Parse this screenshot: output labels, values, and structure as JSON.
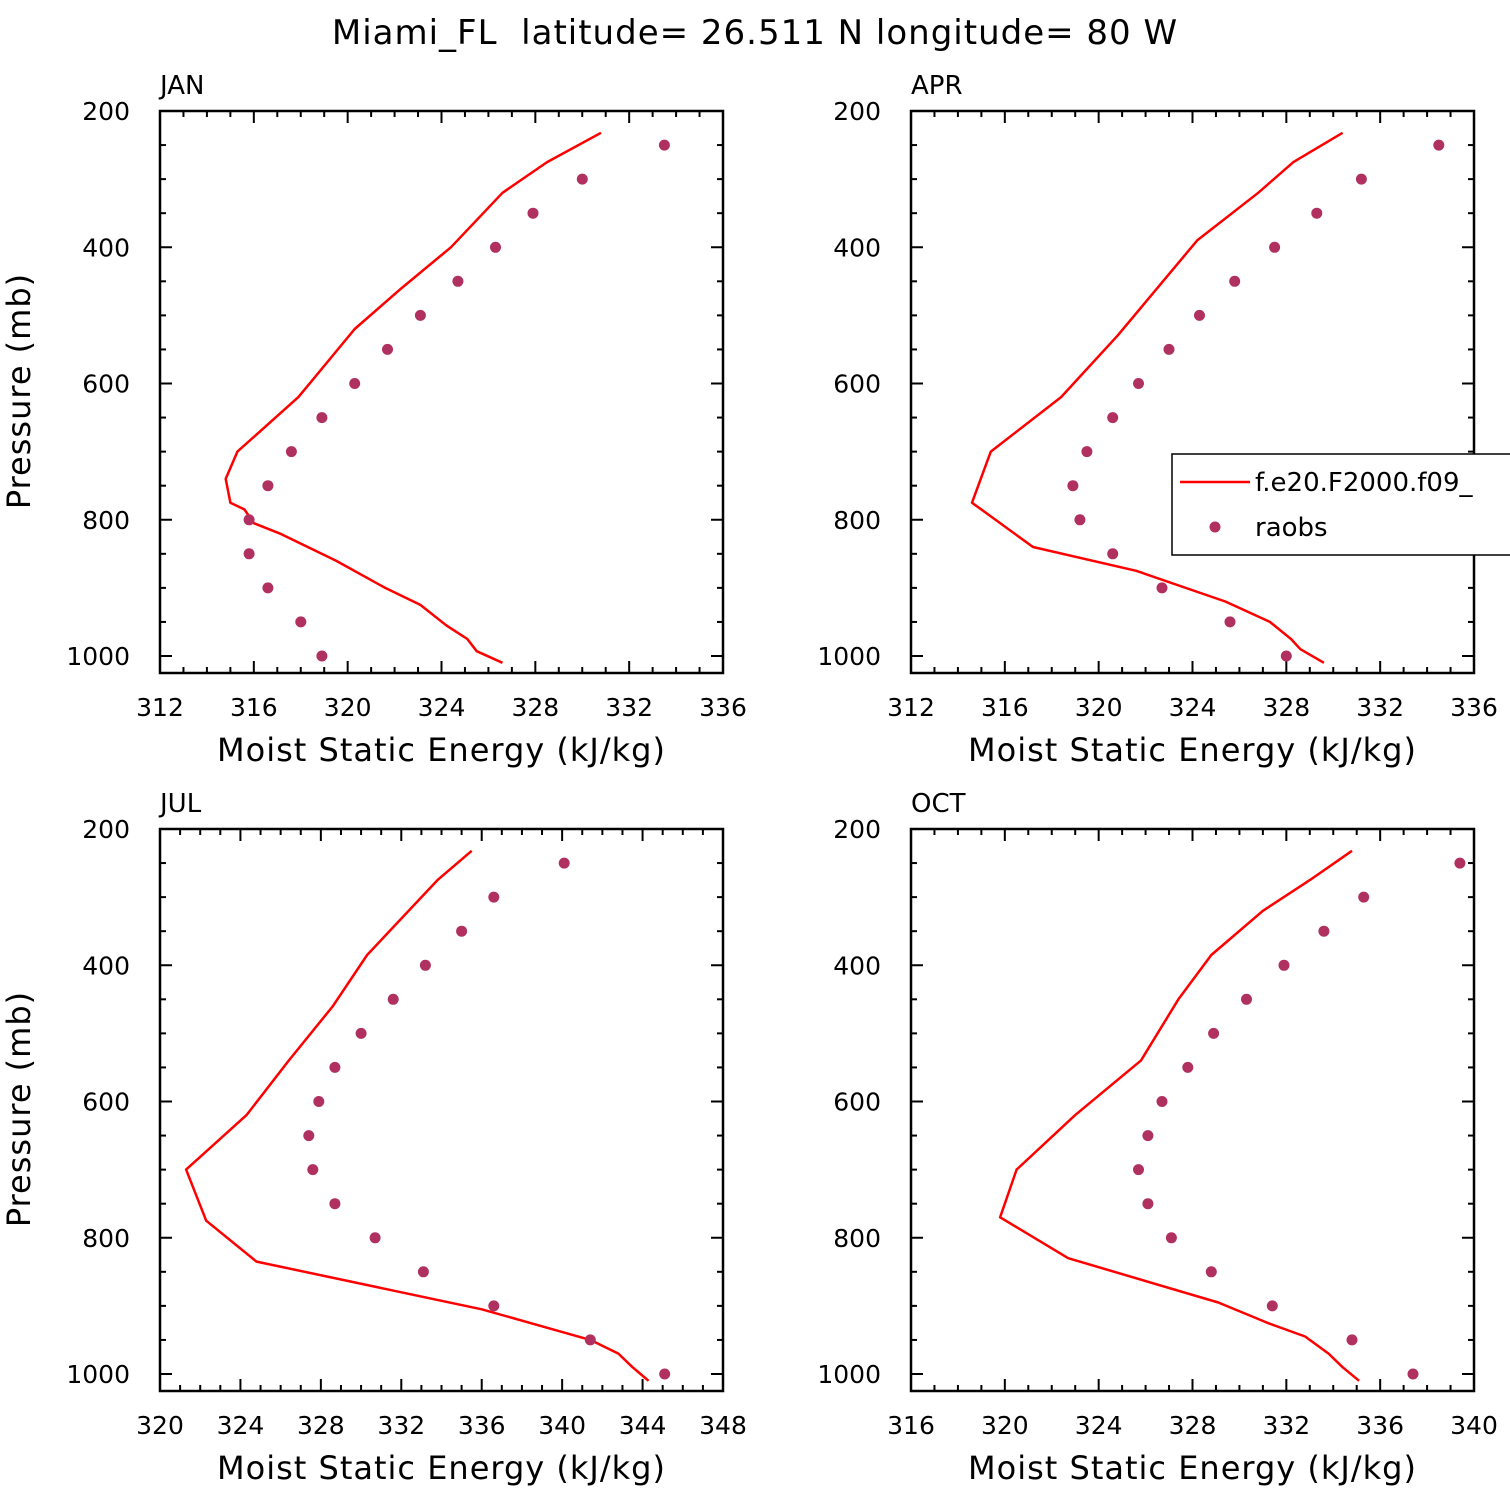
{
  "figure_title": "Miami_FL  latitude= 26.511 N longitude= 80 W",
  "colors": {
    "model": "#ff0000",
    "obs": "#b03060",
    "axis": "#000000"
  },
  "legend": {
    "model_label": "f.e20.F2000.f09_",
    "obs_label": "raobs",
    "panel_index": 1,
    "placement": "right"
  },
  "chart_data": [
    {
      "type": "line",
      "title": "JAN",
      "xlabel": "Moist Static Energy (kJ/kg)",
      "ylabel": "Pressure (mb)",
      "xlim": [
        312,
        336
      ],
      "ylim": [
        1000,
        200
      ],
      "xticks": [
        312,
        316,
        320,
        324,
        328,
        332,
        336
      ],
      "yticks": [
        200,
        400,
        600,
        800,
        1000
      ],
      "series": [
        {
          "name": "f.e20.F2000.f09_",
          "kind": "line",
          "x": [
            326.6,
            325.5,
            325.1,
            324.2,
            323.1,
            321.6,
            319.5,
            317.1,
            316.0,
            315.6,
            315.0,
            314.8,
            315.3,
            317.9,
            320.3,
            322.3,
            324.4,
            326.6,
            328.5,
            330.8
          ],
          "y": [
            1010,
            993,
            975,
            955,
            925,
            900,
            860,
            820,
            805,
            785,
            775,
            740,
            700,
            620,
            520,
            460,
            400,
            320,
            275,
            232
          ]
        },
        {
          "name": "raobs",
          "kind": "points",
          "x": [
            318.9,
            318.0,
            316.6,
            315.8,
            315.8,
            316.6,
            317.6,
            318.9,
            320.3,
            321.7,
            323.1,
            324.7,
            326.3,
            327.9,
            330.0,
            333.5
          ],
          "y": [
            1000,
            950,
            900,
            850,
            800,
            750,
            700,
            650,
            600,
            550,
            500,
            450,
            400,
            350,
            300,
            250
          ]
        }
      ]
    },
    {
      "type": "line",
      "title": "APR",
      "xlabel": "Moist Static Energy (kJ/kg)",
      "ylabel": "",
      "xlim": [
        312,
        336
      ],
      "ylim": [
        1000,
        200
      ],
      "xticks": [
        312,
        316,
        320,
        324,
        328,
        332,
        336
      ],
      "yticks": [
        200,
        400,
        600,
        800,
        1000
      ],
      "series": [
        {
          "name": "f.e20.F2000.f09_",
          "kind": "line",
          "x": [
            329.6,
            328.6,
            328.2,
            327.3,
            325.4,
            321.6,
            317.2,
            314.6,
            315.4,
            318.4,
            320.8,
            324.2,
            326.8,
            328.3,
            330.4
          ],
          "y": [
            1010,
            990,
            975,
            950,
            920,
            875,
            840,
            775,
            700,
            620,
            530,
            390,
            320,
            275,
            232
          ]
        },
        {
          "name": "raobs",
          "kind": "points",
          "x": [
            328.0,
            325.6,
            322.7,
            320.6,
            319.2,
            318.9,
            319.5,
            320.6,
            321.7,
            323.0,
            324.3,
            325.8,
            327.5,
            329.3,
            331.2,
            334.5
          ],
          "y": [
            1000,
            950,
            900,
            850,
            800,
            750,
            700,
            650,
            600,
            550,
            500,
            450,
            400,
            350,
            300,
            250
          ]
        }
      ]
    },
    {
      "type": "line",
      "title": "JUL",
      "xlabel": "Moist Static Energy (kJ/kg)",
      "ylabel": "Pressure (mb)",
      "xlim": [
        320,
        348
      ],
      "ylim": [
        1000,
        200
      ],
      "xticks": [
        320,
        324,
        328,
        332,
        336,
        340,
        344,
        348
      ],
      "yticks": [
        200,
        400,
        600,
        800,
        1000
      ],
      "series": [
        {
          "name": "f.e20.F2000.f09_",
          "kind": "line",
          "x": [
            344.3,
            343.5,
            342.8,
            341.4,
            339.0,
            336.0,
            324.8,
            322.3,
            321.3,
            324.3,
            326.4,
            328.6,
            330.3,
            333.8,
            335.5
          ],
          "y": [
            1010,
            990,
            970,
            950,
            930,
            905,
            835,
            775,
            700,
            620,
            540,
            460,
            385,
            275,
            232
          ]
        },
        {
          "name": "raobs",
          "kind": "points",
          "x": [
            345.1,
            341.4,
            336.6,
            333.1,
            330.7,
            328.7,
            327.6,
            327.4,
            327.9,
            328.7,
            330.0,
            331.6,
            333.2,
            335.0,
            336.6,
            340.1
          ],
          "y": [
            1000,
            950,
            900,
            850,
            800,
            750,
            700,
            650,
            600,
            550,
            500,
            450,
            400,
            350,
            300,
            250
          ]
        }
      ]
    },
    {
      "type": "line",
      "title": "OCT",
      "xlabel": "Moist Static Energy (kJ/kg)",
      "ylabel": "",
      "xlim": [
        316,
        340
      ],
      "ylim": [
        1000,
        200
      ],
      "xticks": [
        316,
        320,
        324,
        328,
        332,
        336,
        340
      ],
      "yticks": [
        200,
        400,
        600,
        800,
        1000
      ],
      "series": [
        {
          "name": "f.e20.F2000.f09_",
          "kind": "line",
          "x": [
            335.1,
            334.4,
            333.8,
            332.8,
            331.2,
            329.1,
            322.7,
            319.8,
            320.5,
            323.0,
            325.8,
            327.4,
            328.8,
            331.0,
            333.0,
            334.8
          ],
          "y": [
            1010,
            990,
            970,
            945,
            925,
            895,
            830,
            770,
            700,
            620,
            540,
            450,
            385,
            320,
            275,
            232
          ]
        },
        {
          "name": "raobs",
          "kind": "points",
          "x": [
            337.4,
            334.8,
            331.4,
            328.8,
            327.1,
            326.1,
            325.7,
            326.1,
            326.7,
            327.8,
            328.9,
            330.3,
            331.9,
            333.6,
            335.3,
            339.4
          ],
          "y": [
            1000,
            950,
            900,
            850,
            800,
            750,
            700,
            650,
            600,
            550,
            500,
            450,
            400,
            350,
            300,
            250
          ]
        }
      ]
    }
  ]
}
